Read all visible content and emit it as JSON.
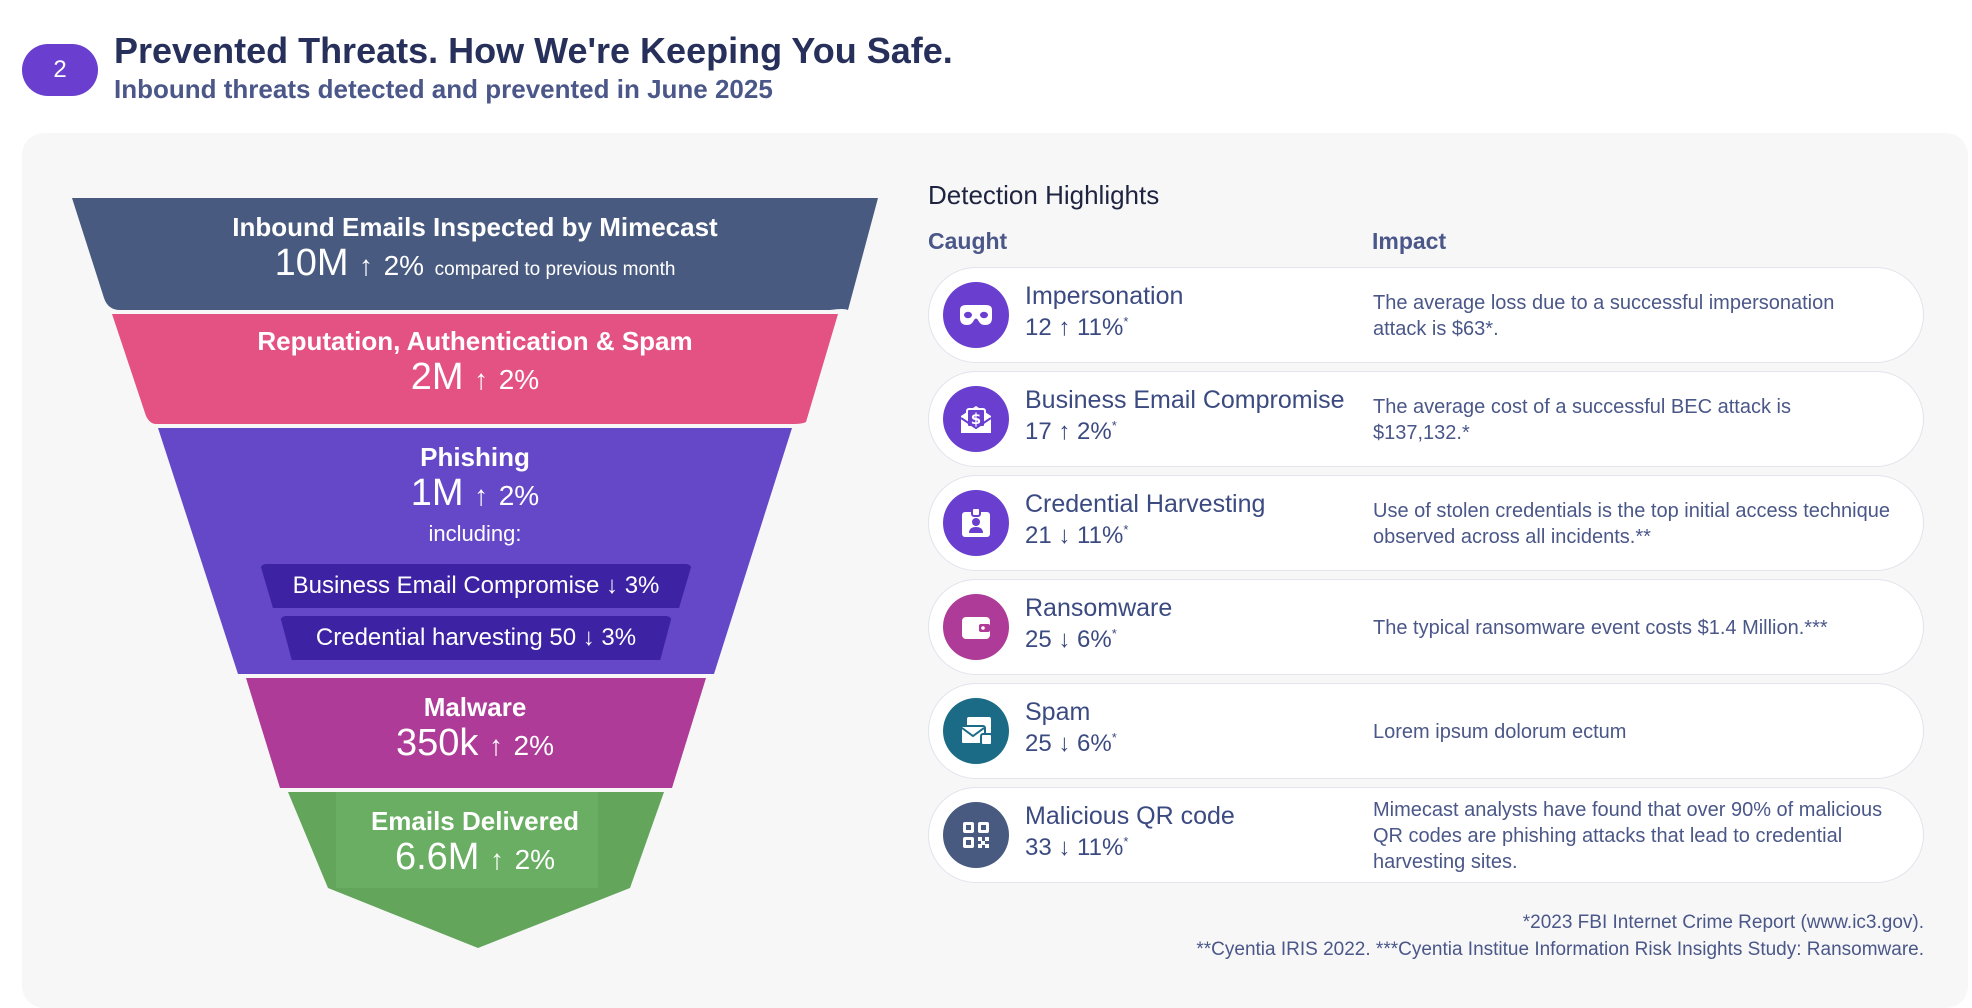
{
  "header": {
    "step": "2",
    "title": "Prevented Threats. How We're Keeping You Safe.",
    "subtitle": "Inbound threats detected and prevented in June 2025"
  },
  "colors": {
    "inspected": "#485a80",
    "reputation": "#e35282",
    "phishing": "#6548c8",
    "phishing_pill": "#3d23a3",
    "malware": "#ad3b97",
    "delivered": "#62a55b",
    "delivered_light": "#6aae63"
  },
  "funnel": {
    "inspected": {
      "label": "Inbound Emails Inspected by Mimecast",
      "value": "10M",
      "arrow": "↑",
      "change": "2%",
      "note": "compared to previous month"
    },
    "reputation": {
      "label": "Reputation, Authentication & Spam",
      "value": "2M",
      "arrow": "↑",
      "change": "2%"
    },
    "phishing": {
      "label": "Phishing",
      "value": "1M",
      "arrow": "↑",
      "change": "2%",
      "including": "including:",
      "subitems": [
        {
          "label": "Business Email Compromise",
          "arrow": "↓",
          "change": "3%"
        },
        {
          "label": "Credential harvesting 50",
          "arrow": "↓",
          "change": "3%"
        }
      ]
    },
    "malware": {
      "label": "Malware",
      "value": "350k",
      "arrow": "↑",
      "change": "2%"
    },
    "delivered": {
      "label": "Emails Delivered",
      "value": "6.6M",
      "arrow": "↑",
      "change": "2%"
    }
  },
  "highlights": {
    "title": "Detection Highlights",
    "col_caught": "Caught",
    "col_impact": "Impact",
    "rows": [
      {
        "name": "Impersonation",
        "count": "12",
        "arrow": "↑",
        "change": "11%",
        "star": "*",
        "icon": "mask-icon",
        "color": "#6a3fd0",
        "impact": "The average loss due to a successful impersonation attack is $63*."
      },
      {
        "name": "Business Email Compromise",
        "count": "17",
        "arrow": "↑",
        "change": "2%",
        "star": "*",
        "icon": "money-envelope-icon",
        "color": "#6a3fd0",
        "impact": "The average cost of a successful BEC attack is $137,132.*"
      },
      {
        "name": "Credential Harvesting",
        "count": "21",
        "arrow": "↓",
        "change": "11%",
        "star": "*",
        "icon": "id-badge-icon",
        "color": "#6a3fd0",
        "impact": "Use of stolen credentials is the top initial access technique observed across all incidents.**"
      },
      {
        "name": "Ransomware",
        "count": "25",
        "arrow": "↓",
        "change": "6%",
        "star": "*",
        "icon": "wallet-icon",
        "color": "#ad3b97",
        "impact": "The typical ransomware event costs $1.4 Million.***"
      },
      {
        "name": "Spam",
        "count": "25",
        "arrow": "↓",
        "change": "6%",
        "star": "*",
        "icon": "mail-stack-icon",
        "color": "#1c6b86",
        "impact": "Lorem ipsum dolorum ectum"
      },
      {
        "name": "Malicious QR code",
        "count": "33",
        "arrow": "↓",
        "change": "11%",
        "star": "*",
        "icon": "qr-code-icon",
        "color": "#485a80",
        "impact": "Mimecast analysts have found that over 90% of malicious QR codes are phishing attacks that lead to credential harvesting sites."
      }
    ]
  },
  "footnotes": {
    "line1": "*2023 FBI Internet Crime Report (www.ic3.gov).",
    "line2": "**Cyentia IRIS 2022. ***Cyentia Institue Information Risk Insights Study: Ransomware."
  }
}
